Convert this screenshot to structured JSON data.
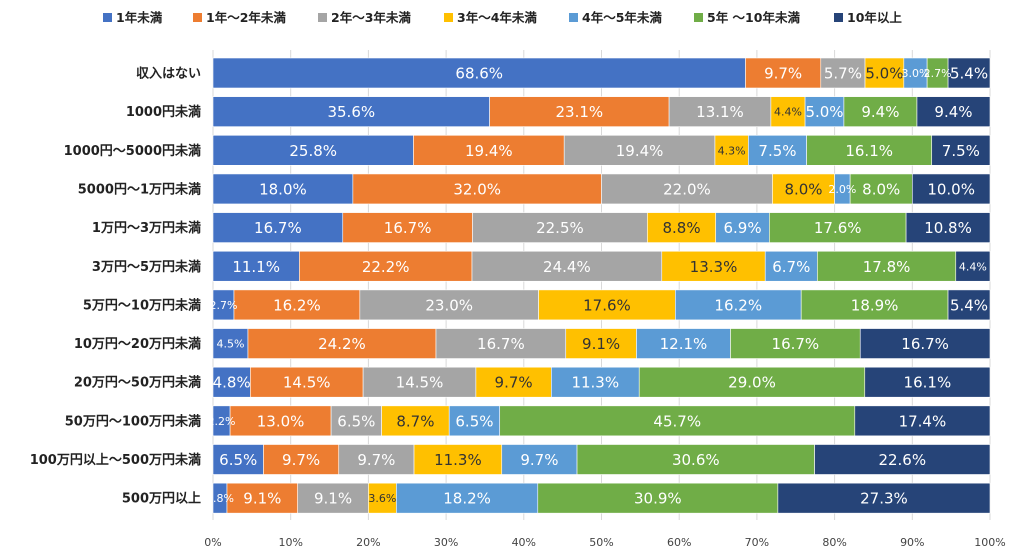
{
  "chart_data": {
    "type": "bar",
    "orientation": "horizontal",
    "stacked": true,
    "normalized": true,
    "categories": [
      "収入はない",
      "1000円未満",
      "1000円～5000円未満",
      "5000円～1万円未満",
      "1万円～3万円未満",
      "3万円～5万円未満",
      "5万円～10万円未満",
      "10万円～20万円未満",
      "20万円～50万円未満",
      "50万円～100万円未満",
      "100万円以上～500万円未満",
      "500万円以上"
    ],
    "series": [
      {
        "name": "1年未満",
        "color": "#4472c4",
        "values": [
          68.6,
          35.6,
          25.8,
          18.0,
          16.7,
          11.1,
          2.7,
          4.5,
          4.8,
          2.2,
          6.5,
          1.8
        ],
        "labels": [
          "68.6%",
          "35.6%",
          "25.8%",
          "18.0%",
          "16.7%",
          "11.1%",
          "2.7%",
          "4.5%",
          "4.8%",
          "2.2%",
          "6.5%",
          "1.8%"
        ]
      },
      {
        "name": "1年～2年未満",
        "color": "#ed7d31",
        "values": [
          9.7,
          23.1,
          19.4,
          32.0,
          16.7,
          22.2,
          16.2,
          24.2,
          14.5,
          13.0,
          9.7,
          9.1
        ],
        "labels": [
          "9.7%",
          "23.1%",
          "19.4%",
          "32.0%",
          "16.7%",
          "22.2%",
          "16.2%",
          "24.2%",
          "14.5%",
          "13.0%",
          "9.7%",
          "9.1%"
        ]
      },
      {
        "name": "2年～3年未満",
        "color": "#a5a5a5",
        "values": [
          5.7,
          13.1,
          19.4,
          22.0,
          22.5,
          24.4,
          23.0,
          16.7,
          14.5,
          6.5,
          9.7,
          9.1
        ],
        "labels": [
          "5.7%",
          "13.1%",
          "19.4%",
          "22.0%",
          "22.5%",
          "24.4%",
          "23.0%",
          "16.7%",
          "14.5%",
          "6.5%",
          "9.7%",
          "9.1%"
        ]
      },
      {
        "name": "3年～4年未満",
        "color": "#ffc000",
        "values": [
          5.0,
          4.4,
          4.3,
          8.0,
          8.8,
          13.3,
          17.6,
          9.1,
          9.7,
          8.7,
          11.3,
          3.6
        ],
        "labels": [
          "5.0%",
          "4.4%",
          "4.3%",
          "8.0%",
          "8.8%",
          "13.3%",
          "17.6%",
          "9.1%",
          "9.7%",
          "8.7%",
          "11.3%",
          "3.6%"
        ]
      },
      {
        "name": "4年～5年未満",
        "color": "#5b9bd5",
        "values": [
          3.0,
          5.0,
          7.5,
          2.0,
          6.9,
          6.7,
          16.2,
          12.1,
          11.3,
          6.5,
          9.7,
          18.2
        ],
        "labels": [
          "3.0%",
          "5.0%",
          "7.5%",
          "2.0%",
          "6.9%",
          "6.7%",
          "16.2%",
          "12.1%",
          "11.3%",
          "6.5%",
          "9.7%",
          "18.2%"
        ]
      },
      {
        "name": "5年 ～10年未満",
        "color": "#70ad47",
        "values": [
          2.7,
          9.4,
          16.1,
          8.0,
          17.6,
          17.8,
          18.9,
          16.7,
          29.0,
          45.7,
          30.6,
          30.9
        ],
        "labels": [
          "2.7%",
          "9.4%",
          "16.1%",
          "8.0%",
          "17.6%",
          "17.8%",
          "18.9%",
          "16.7%",
          "29.0%",
          "45.7%",
          "30.6%",
          "30.9%"
        ]
      },
      {
        "name": "10年以上",
        "color": "#264478",
        "values": [
          5.4,
          9.4,
          7.5,
          10.0,
          10.8,
          4.4,
          5.4,
          16.7,
          16.1,
          17.4,
          22.6,
          27.3
        ],
        "labels": [
          "5.4%",
          "9.4%",
          "7.5%",
          "10.0%",
          "10.8%",
          "4.4%",
          "5.4%",
          "16.7%",
          "16.1%",
          "17.4%",
          "22.6%",
          "27.3%"
        ]
      }
    ],
    "x_ticks": [
      "0%",
      "10%",
      "20%",
      "30%",
      "40%",
      "50%",
      "60%",
      "70%",
      "80%",
      "90%",
      "100%"
    ],
    "xlim": [
      0,
      100
    ],
    "grid": true,
    "legend_position": "top"
  }
}
